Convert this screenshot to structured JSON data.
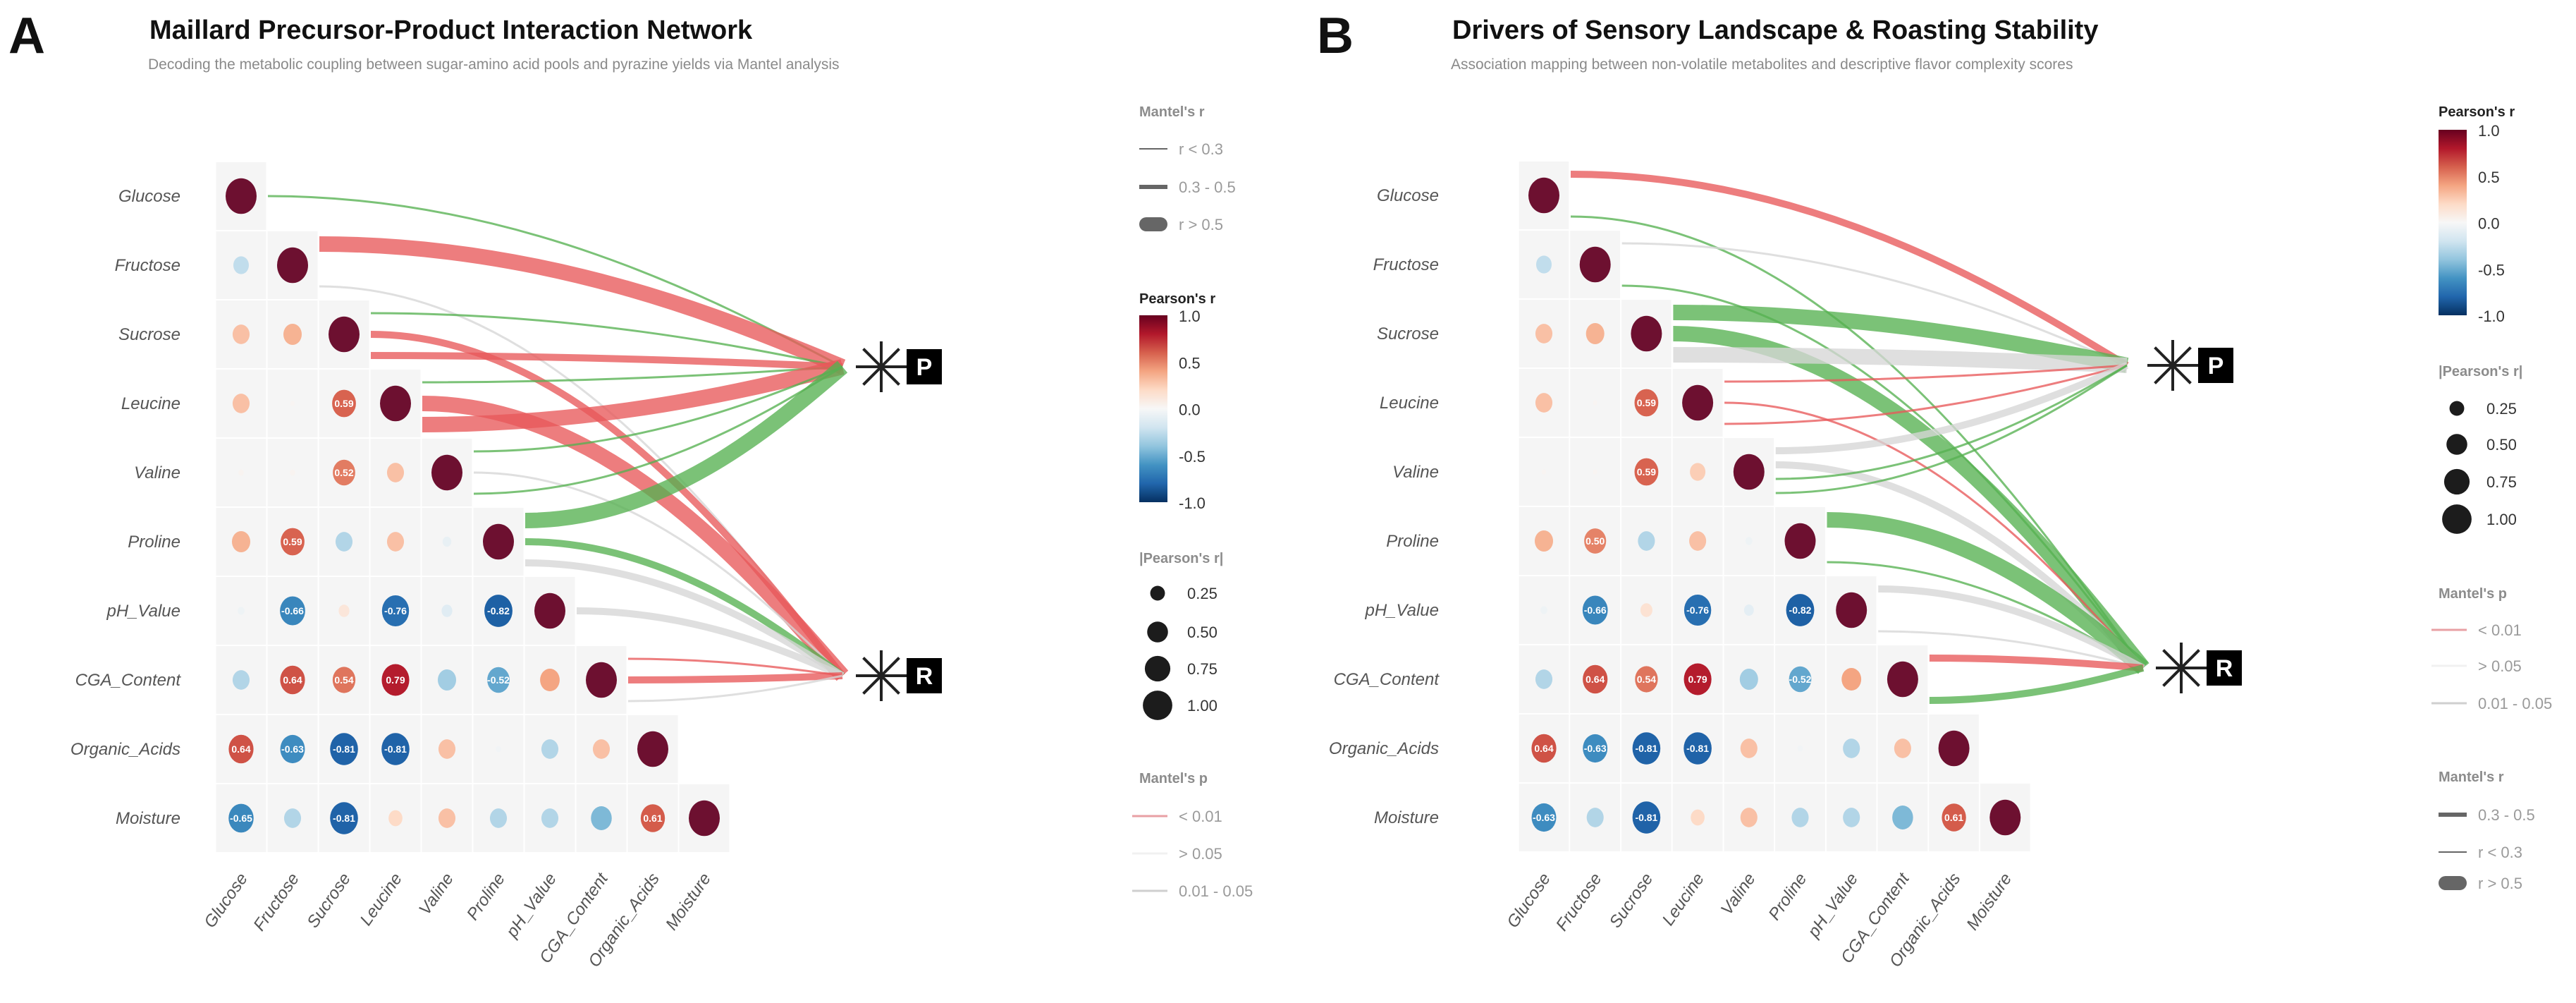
{
  "chart_data": [
    {
      "type": "heatmap",
      "panel_letter": "A",
      "title": "Maillard Precursor-Product Interaction Network",
      "subtitle": "Decoding the metabolic coupling between sugar-amino acid pools and pyrazine yields via Mantel analysis",
      "variables": [
        "Glucose",
        "Fructose",
        "Sucrose",
        "Leucine",
        "Valine",
        "Proline",
        "pH_Value",
        "CGA_Content",
        "Organic_Acids",
        "Moisture"
      ],
      "matrix": [
        [
          1
        ],
        [
          -0.25,
          1
        ],
        [
          0.3,
          0.35,
          1
        ],
        [
          0.3,
          0.02,
          0.59,
          1
        ],
        [
          0.03,
          0.03,
          0.52,
          0.3,
          1
        ],
        [
          0.35,
          0.59,
          -0.3,
          0.3,
          -0.08,
          1
        ],
        [
          -0.05,
          -0.66,
          0.12,
          -0.76,
          -0.12,
          -0.82,
          1
        ],
        [
          -0.3,
          0.64,
          0.54,
          0.79,
          -0.35,
          -0.52,
          0.4,
          1
        ],
        [
          0.64,
          -0.63,
          -0.81,
          -0.81,
          0.3,
          -0.03,
          -0.3,
          0.3,
          1
        ],
        [
          -0.65,
          -0.3,
          -0.81,
          0.2,
          0.3,
          -0.3,
          -0.3,
          -0.45,
          0.61,
          1
        ]
      ],
      "label_threshold": 0.5,
      "nodes": [
        "P",
        "R"
      ],
      "links": [
        {
          "from": "Glucose",
          "to": "P",
          "mantel_r": "r < 0.3",
          "mantel_p": "0.01 - 0.05"
        },
        {
          "from": "Fructose",
          "to": "P",
          "mantel_r": "r > 0.5",
          "mantel_p": "< 0.01"
        },
        {
          "from": "Fructose",
          "to": "R",
          "mantel_r": "r < 0.3",
          "mantel_p": "> 0.05"
        },
        {
          "from": "Sucrose",
          "to": "P",
          "mantel_r": "r < 0.3",
          "mantel_p": "0.01 - 0.05"
        },
        {
          "from": "Sucrose",
          "to": "R",
          "mantel_r": "0.3 - 0.5",
          "mantel_p": "< 0.01"
        },
        {
          "from": "Sucrose",
          "to": "P",
          "mantel_r": "0.3 - 0.5",
          "mantel_p": "< 0.01"
        },
        {
          "from": "Leucine",
          "to": "P",
          "mantel_r": "r < 0.3",
          "mantel_p": "0.01 - 0.05"
        },
        {
          "from": "Leucine",
          "to": "R",
          "mantel_r": "r > 0.5",
          "mantel_p": "< 0.01"
        },
        {
          "from": "Leucine",
          "to": "P",
          "mantel_r": "r > 0.5",
          "mantel_p": "< 0.01"
        },
        {
          "from": "Valine",
          "to": "P",
          "mantel_r": "r < 0.3",
          "mantel_p": "0.01 - 0.05"
        },
        {
          "from": "Valine",
          "to": "R",
          "mantel_r": "r < 0.3",
          "mantel_p": "> 0.05"
        },
        {
          "from": "Valine",
          "to": "P",
          "mantel_r": "r < 0.3",
          "mantel_p": "0.01 - 0.05"
        },
        {
          "from": "Proline",
          "to": "P",
          "mantel_r": "r > 0.5",
          "mantel_p": "0.01 - 0.05"
        },
        {
          "from": "Proline",
          "to": "R",
          "mantel_r": "0.3 - 0.5",
          "mantel_p": "0.01 - 0.05"
        },
        {
          "from": "Proline",
          "to": "R",
          "mantel_r": "0.3 - 0.5",
          "mantel_p": "> 0.05"
        },
        {
          "from": "pH_Value",
          "to": "R",
          "mantel_r": "0.3 - 0.5",
          "mantel_p": "> 0.05"
        },
        {
          "from": "CGA_Content",
          "to": "R",
          "mantel_r": "r < 0.3",
          "mantel_p": "< 0.01"
        },
        {
          "from": "CGA_Content",
          "to": "R",
          "mantel_r": "0.3 - 0.5",
          "mantel_p": "< 0.01"
        },
        {
          "from": "CGA_Content",
          "to": "R",
          "mantel_r": "r < 0.3",
          "mantel_p": "> 0.05"
        }
      ],
      "legend": {
        "mantel_r": {
          "title": "Mantel's r",
          "items": [
            "r < 0.3",
            "0.3 - 0.5",
            "r > 0.5"
          ]
        },
        "pearson": {
          "title": "Pearson's r",
          "ticks": [
            "1.0",
            "0.5",
            "0.0",
            "-0.5",
            "-1.0"
          ],
          "range": [
            -1,
            1
          ]
        },
        "size": {
          "title": "|Pearson's r|",
          "items": [
            "0.25",
            "0.50",
            "0.75",
            "1.00"
          ]
        },
        "mantel_p": {
          "title": "Mantel's p",
          "items": [
            "< 0.01",
            "> 0.05",
            "0.01 - 0.05"
          ]
        }
      }
    },
    {
      "type": "heatmap",
      "panel_letter": "B",
      "title": "Drivers of Sensory Landscape & Roasting Stability",
      "subtitle": "Association mapping between non-volatile metabolites and descriptive flavor complexity scores",
      "variables": [
        "Glucose",
        "Fructose",
        "Sucrose",
        "Leucine",
        "Valine",
        "Proline",
        "pH_Value",
        "CGA_Content",
        "Organic_Acids",
        "Moisture"
      ],
      "matrix": [
        [
          1
        ],
        [
          -0.25,
          1
        ],
        [
          0.3,
          0.35,
          1
        ],
        [
          0.3,
          0.02,
          0.59,
          1
        ],
        [
          0.02,
          0.02,
          0.59,
          0.25,
          1
        ],
        [
          0.35,
          0.5,
          -0.3,
          0.3,
          -0.05,
          1
        ],
        [
          -0.05,
          -0.66,
          0.15,
          -0.76,
          -0.1,
          -0.82,
          1
        ],
        [
          -0.3,
          0.64,
          0.54,
          0.79,
          -0.35,
          -0.52,
          0.4,
          1
        ],
        [
          0.64,
          -0.63,
          -0.81,
          -0.81,
          0.3,
          -0.03,
          -0.3,
          0.3,
          1
        ],
        [
          -0.63,
          -0.3,
          -0.81,
          0.2,
          0.3,
          -0.3,
          -0.3,
          -0.45,
          0.61,
          1
        ]
      ],
      "label_threshold": 0.5,
      "nodes": [
        "P",
        "R"
      ],
      "links": [
        {
          "from": "Glucose",
          "to": "P",
          "mantel_r": "0.3 - 0.5",
          "mantel_p": "< 0.01"
        },
        {
          "from": "Glucose",
          "to": "R",
          "mantel_r": "r < 0.3",
          "mantel_p": "0.01 - 0.05"
        },
        {
          "from": "Fructose",
          "to": "P",
          "mantel_r": "r < 0.3",
          "mantel_p": "> 0.05"
        },
        {
          "from": "Fructose",
          "to": "R",
          "mantel_r": "r < 0.3",
          "mantel_p": "0.01 - 0.05"
        },
        {
          "from": "Sucrose",
          "to": "P",
          "mantel_r": "r > 0.5",
          "mantel_p": "0.01 - 0.05"
        },
        {
          "from": "Sucrose",
          "to": "R",
          "mantel_r": "r > 0.5",
          "mantel_p": "0.01 - 0.05"
        },
        {
          "from": "Sucrose",
          "to": "P",
          "mantel_r": "r > 0.5",
          "mantel_p": "> 0.05"
        },
        {
          "from": "Leucine",
          "to": "P",
          "mantel_r": "r < 0.3",
          "mantel_p": "< 0.01"
        },
        {
          "from": "Leucine",
          "to": "R",
          "mantel_r": "r < 0.3",
          "mantel_p": "< 0.01"
        },
        {
          "from": "Leucine",
          "to": "P",
          "mantel_r": "r < 0.3",
          "mantel_p": "< 0.01"
        },
        {
          "from": "Valine",
          "to": "P",
          "mantel_r": "0.3 - 0.5",
          "mantel_p": "> 0.05"
        },
        {
          "from": "Valine",
          "to": "R",
          "mantel_r": "0.3 - 0.5",
          "mantel_p": "> 0.05"
        },
        {
          "from": "Valine",
          "to": "P",
          "mantel_r": "r < 0.3",
          "mantel_p": "0.01 - 0.05"
        },
        {
          "from": "Valine",
          "to": "P",
          "mantel_r": "r < 0.3",
          "mantel_p": "0.01 - 0.05"
        },
        {
          "from": "Proline",
          "to": "R",
          "mantel_r": "r > 0.5",
          "mantel_p": "0.01 - 0.05"
        },
        {
          "from": "Proline",
          "to": "R",
          "mantel_r": "r < 0.3",
          "mantel_p": "0.01 - 0.05"
        },
        {
          "from": "pH_Value",
          "to": "R",
          "mantel_r": "0.3 - 0.5",
          "mantel_p": "> 0.05"
        },
        {
          "from": "pH_Value",
          "to": "R",
          "mantel_r": "r < 0.3",
          "mantel_p": "> 0.05"
        },
        {
          "from": "CGA_Content",
          "to": "R",
          "mantel_r": "0.3 - 0.5",
          "mantel_p": "< 0.01"
        },
        {
          "from": "CGA_Content",
          "to": "R",
          "mantel_r": "0.3 - 0.5",
          "mantel_p": "0.01 - 0.05"
        }
      ],
      "legend": {
        "pearson": {
          "title": "Pearson's r",
          "ticks": [
            "1.0",
            "0.5",
            "0.0",
            "-0.5",
            "-1.0"
          ],
          "range": [
            -1,
            1
          ]
        },
        "size": {
          "title": "|Pearson's r|",
          "items": [
            "0.25",
            "0.50",
            "0.75",
            "1.00"
          ]
        },
        "mantel_p": {
          "title": "Mantel's p",
          "items": [
            "< 0.01",
            "> 0.05",
            "0.01 - 0.05"
          ]
        },
        "mantel_r": {
          "title": "Mantel's r",
          "items": [
            "0.3 - 0.5",
            "r < 0.3",
            "r > 0.5"
          ]
        }
      }
    }
  ],
  "colors": {
    "p_lt_001": "#e8585a",
    "p_001_005": "#56b151",
    "p_gt_005": "#d6d6d6",
    "diag": "#6d1030",
    "cell_bg": "#f5f5f5"
  }
}
